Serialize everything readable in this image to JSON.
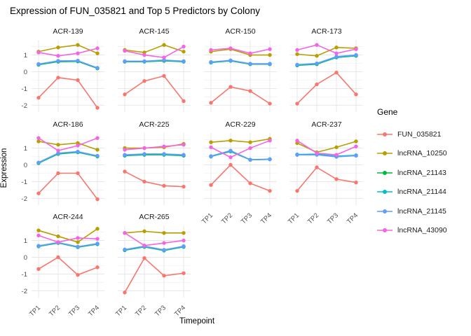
{
  "title": "Expression of FUN_035821 and Top 5 Predictors by Colony",
  "chart_data": {
    "type": "line",
    "facet_by": "Colony",
    "x": [
      "TP1",
      "TP2",
      "TP3",
      "TP4"
    ],
    "xlabel": "Timepoint",
    "ylabel": "Expression",
    "ylim": [
      -2.4,
      1.9
    ],
    "yticks": [
      1,
      0,
      -1,
      -2
    ],
    "minor_gridlines": [
      1.5,
      0.5,
      -0.5,
      -1.5
    ],
    "grid": true,
    "legend": {
      "title": "Gene",
      "position": "right"
    },
    "series": [
      {
        "name": "FUN_035821",
        "color": "#F8766D"
      },
      {
        "name": "lncRNA_10250",
        "color": "#B79F00"
      },
      {
        "name": "lncRNA_21143",
        "color": "#00BA38"
      },
      {
        "name": "lncRNA_21144",
        "color": "#00BFC4"
      },
      {
        "name": "lncRNA_21145",
        "color": "#619CFF"
      },
      {
        "name": "lncRNA_43090",
        "color": "#F564E3"
      }
    ],
    "facets": [
      {
        "name": "ACR-139",
        "show_x_ticks": false,
        "show_y_ticks": true,
        "values": {
          "FUN_035821": [
            -1.55,
            -0.35,
            -0.5,
            -2.15
          ],
          "lncRNA_10250": [
            1.2,
            1.45,
            1.6,
            1.1
          ],
          "lncRNA_21143": [
            0.42,
            0.6,
            0.62,
            0.2
          ],
          "lncRNA_21144": [
            0.45,
            0.63,
            0.65,
            0.22
          ],
          "lncRNA_21145": [
            0.46,
            0.65,
            0.66,
            0.23
          ],
          "lncRNA_43090": [
            1.15,
            0.95,
            1.1,
            1.4
          ]
        }
      },
      {
        "name": "ACR-145",
        "show_x_ticks": false,
        "show_y_ticks": false,
        "values": {
          "FUN_035821": [
            -1.35,
            -0.55,
            -0.25,
            -1.75
          ],
          "lncRNA_10250": [
            1.3,
            1.15,
            1.6,
            1.2
          ],
          "lncRNA_21143": [
            0.6,
            0.6,
            0.65,
            0.6
          ],
          "lncRNA_21144": [
            0.62,
            0.62,
            0.68,
            0.62
          ],
          "lncRNA_21145": [
            0.63,
            0.63,
            0.7,
            0.63
          ],
          "lncRNA_43090": [
            1.25,
            1.0,
            0.85,
            1.5
          ]
        }
      },
      {
        "name": "ACR-150",
        "show_x_ticks": false,
        "show_y_ticks": false,
        "values": {
          "FUN_035821": [
            -1.85,
            -0.9,
            -1.15,
            -1.9
          ],
          "lncRNA_10250": [
            1.2,
            1.35,
            1.0,
            1.0
          ],
          "lncRNA_21143": [
            0.55,
            0.65,
            0.45,
            0.45
          ],
          "lncRNA_21144": [
            0.57,
            0.67,
            0.47,
            0.47
          ],
          "lncRNA_21145": [
            0.58,
            0.68,
            0.48,
            0.48
          ],
          "lncRNA_43090": [
            1.3,
            1.4,
            1.1,
            1.35
          ]
        }
      },
      {
        "name": "ACR-173",
        "show_x_ticks": false,
        "show_y_ticks": false,
        "values": {
          "FUN_035821": [
            -1.9,
            -0.75,
            -0.05,
            -1.35
          ],
          "lncRNA_10250": [
            1.05,
            0.95,
            1.45,
            1.4
          ],
          "lncRNA_21143": [
            0.38,
            0.45,
            0.85,
            0.95
          ],
          "lncRNA_21144": [
            0.4,
            0.48,
            0.87,
            0.97
          ],
          "lncRNA_21145": [
            0.42,
            0.5,
            0.9,
            1.0
          ],
          "lncRNA_43090": [
            1.3,
            1.6,
            1.1,
            1.35
          ]
        }
      },
      {
        "name": "ACR-186",
        "show_x_ticks": false,
        "show_y_ticks": true,
        "values": {
          "FUN_035821": [
            -1.7,
            -0.5,
            -0.5,
            -2.05
          ],
          "lncRNA_10250": [
            1.4,
            1.2,
            1.3,
            0.9
          ],
          "lncRNA_21143": [
            0.1,
            0.65,
            0.75,
            0.5
          ],
          "lncRNA_21144": [
            0.12,
            0.68,
            0.77,
            0.52
          ],
          "lncRNA_21145": [
            0.14,
            0.7,
            0.79,
            0.54
          ],
          "lncRNA_43090": [
            1.6,
            0.85,
            1.15,
            1.6
          ]
        }
      },
      {
        "name": "ACR-225",
        "show_x_ticks": false,
        "show_y_ticks": false,
        "values": {
          "FUN_035821": [
            -0.4,
            -1.0,
            -1.25,
            -1.3
          ],
          "lncRNA_10250": [
            1.0,
            1.0,
            1.05,
            1.25
          ],
          "lncRNA_21143": [
            0.55,
            0.6,
            0.6,
            0.55
          ],
          "lncRNA_21144": [
            0.58,
            0.63,
            0.63,
            0.58
          ],
          "lncRNA_21145": [
            0.6,
            0.65,
            0.65,
            0.6
          ],
          "lncRNA_43090": [
            0.9,
            1.0,
            1.1,
            1.2
          ]
        }
      },
      {
        "name": "ACR-229",
        "show_x_ticks": true,
        "show_y_ticks": false,
        "values": {
          "FUN_035821": [
            -1.2,
            0.0,
            -1.1,
            -1.55
          ],
          "lncRNA_10250": [
            1.35,
            1.45,
            1.35,
            1.55
          ],
          "lncRNA_21143": [
            0.5,
            0.8,
            0.3,
            0.33
          ],
          "lncRNA_21144": [
            0.5,
            0.82,
            0.31,
            0.34
          ],
          "lncRNA_21145": [
            0.52,
            0.85,
            0.3,
            0.33
          ],
          "lncRNA_43090": [
            1.05,
            0.45,
            1.0,
            1.45
          ]
        }
      },
      {
        "name": "ACR-237",
        "show_x_ticks": true,
        "show_y_ticks": false,
        "values": {
          "FUN_035821": [
            -1.55,
            -0.15,
            -0.85,
            -1.05
          ],
          "lncRNA_10250": [
            1.3,
            0.75,
            1.05,
            1.4
          ],
          "lncRNA_21143": [
            0.6,
            0.62,
            0.5,
            0.55
          ],
          "lncRNA_21144": [
            0.62,
            0.64,
            0.52,
            0.57
          ],
          "lncRNA_21145": [
            0.6,
            0.6,
            0.48,
            0.55
          ],
          "lncRNA_43090": [
            1.45,
            0.7,
            0.6,
            1.1
          ]
        }
      },
      {
        "name": "ACR-244",
        "show_x_ticks": true,
        "show_y_ticks": true,
        "values": {
          "FUN_035821": [
            -0.7,
            0.0,
            -1.05,
            -0.6
          ],
          "lncRNA_10250": [
            1.6,
            1.25,
            0.9,
            1.7
          ],
          "lncRNA_21143": [
            0.65,
            0.85,
            0.6,
            0.78
          ],
          "lncRNA_21144": [
            0.67,
            0.87,
            0.62,
            0.8
          ],
          "lncRNA_21145": [
            0.68,
            0.88,
            0.63,
            0.82
          ],
          "lncRNA_43090": [
            1.3,
            0.9,
            1.15,
            1.1
          ]
        }
      },
      {
        "name": "ACR-265",
        "show_x_ticks": true,
        "show_y_ticks": false,
        "values": {
          "FUN_035821": [
            -2.1,
            -0.05,
            -1.1,
            -0.95
          ],
          "lncRNA_10250": [
            1.45,
            1.55,
            1.45,
            1.45
          ],
          "lncRNA_21143": [
            0.42,
            0.62,
            0.4,
            0.62
          ],
          "lncRNA_21144": [
            0.44,
            0.64,
            0.42,
            0.64
          ],
          "lncRNA_21145": [
            0.46,
            0.66,
            0.44,
            0.66
          ],
          "lncRNA_43090": [
            1.45,
            0.7,
            0.85,
            1.0
          ]
        }
      }
    ]
  }
}
